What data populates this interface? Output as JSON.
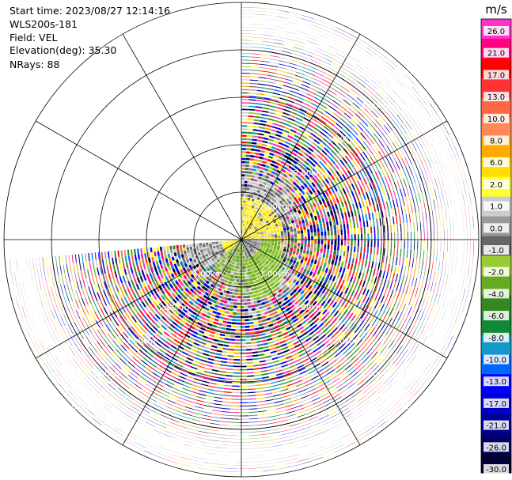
{
  "header": {
    "start_time": "Start time: 2023/08/27 12:14:16",
    "station": "WLS200s-181",
    "field": "Field: VEL",
    "elevation": "Elevation(deg): 35.30",
    "nrays": "NRays: 88"
  },
  "chart_data": {
    "type": "polar_ppi",
    "field": "VEL",
    "units": "m/s",
    "elevation_deg": 35.3,
    "n_rays": 88,
    "azimuth_coverage_deg": [
      0,
      265
    ],
    "range_rings_km": [
      1,
      2,
      3,
      4,
      5
    ],
    "range_ring_labels": [
      "1.00km",
      "2.00km",
      "3.00km",
      "4.00km",
      "5.00km"
    ],
    "max_range_km": 5.0,
    "colorbar": {
      "title": "m/s",
      "ticks": [
        "26.0",
        "21.0",
        "17.0",
        "13.0",
        "10.0",
        "8.0",
        "6.0",
        "2.0",
        "1.0",
        "0.0",
        "-1.0",
        "-2.0",
        "-4.0",
        "-6.0",
        "-8.0",
        "-10.0",
        "-13.0",
        "-17.0",
        "-21.0",
        "-26.0",
        "-30.0"
      ],
      "colors": [
        "#ff33cc",
        "#ff0080",
        "#ff0000",
        "#ff3333",
        "#ff6644",
        "#ff8855",
        "#ffaa00",
        "#ffdd00",
        "#ffff33",
        "#cccccc",
        "#999999",
        "#666666",
        "#99cc33",
        "#66aa22",
        "#338822",
        "#118833",
        "#1199cc",
        "#0066ff",
        "#0000ff",
        "#0000cc",
        "#000099",
        "#000066",
        "#000033"
      ]
    },
    "regions": [
      {
        "description": "near-zero velocity clutter",
        "range_km": [
          0,
          1.3
        ],
        "value_ms": 0.0
      },
      {
        "description": "light negative velocity",
        "range_km": [
          0.2,
          1.2
        ],
        "value_ms": -2.0
      },
      {
        "description": "light positive velocity",
        "range_km": [
          0.3,
          1.6
        ],
        "value_ms": 2.0
      },
      {
        "description": "noise (random velocities)",
        "range_km": [
          1.2,
          5.0
        ]
      }
    ]
  }
}
